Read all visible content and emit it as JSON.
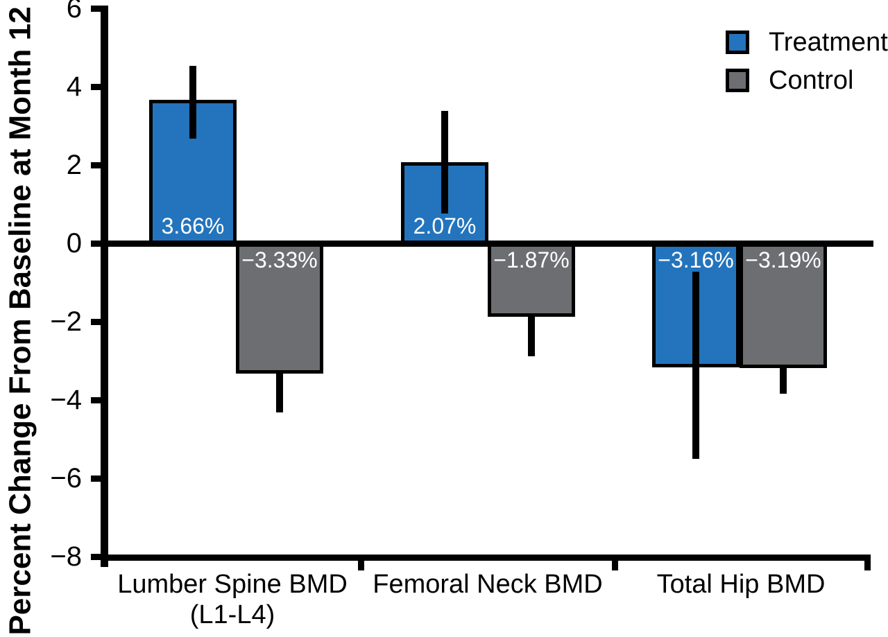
{
  "figure": {
    "background": "#ffffff"
  },
  "chart_data": {
    "type": "bar",
    "title": "",
    "ylabel": "Percent Change From Baseline at Month 12",
    "xlabel": "",
    "ylim": [
      -8,
      6
    ],
    "grid": false,
    "legend_position": "top-right",
    "axis_color": "#000000",
    "bar_label_color": "#ffffff",
    "yticks": [
      {
        "value": 6,
        "label": "6"
      },
      {
        "value": 4,
        "label": "4"
      },
      {
        "value": 2,
        "label": "2"
      },
      {
        "value": 0,
        "label": "0"
      },
      {
        "value": -2,
        "label": "−2"
      },
      {
        "value": -4,
        "label": "−4"
      },
      {
        "value": -6,
        "label": "−6"
      },
      {
        "value": -8,
        "label": "−8"
      }
    ],
    "categories": [
      {
        "label": "Lumber Spine BMD",
        "sublabel": "(L1-L4)"
      },
      {
        "label": "Femoral Neck BMD",
        "sublabel": ""
      },
      {
        "label": "Total Hip BMD",
        "sublabel": ""
      }
    ],
    "series": [
      {
        "name": "Treatment",
        "color": "#2374BC",
        "values": [
          3.66,
          2.07,
          -3.16
        ],
        "bar_labels": [
          "3.66%",
          "2.07%",
          "−3.16%"
        ],
        "error_whisker_top": [
          4.53,
          3.38,
          -0.73
        ],
        "error_whisker_bottom": [
          2.67,
          0.76,
          -5.5
        ]
      },
      {
        "name": "Control",
        "color": "#6D6E71",
        "values": [
          -3.33,
          -1.87,
          -3.19
        ],
        "bar_labels": [
          "−3.33%",
          "−1.87%",
          "−3.19%"
        ],
        "error_whisker_top": [
          -3.33,
          -1.87,
          -3.19
        ],
        "error_whisker_bottom": [
          -4.32,
          -2.87,
          -3.84
        ]
      }
    ]
  }
}
